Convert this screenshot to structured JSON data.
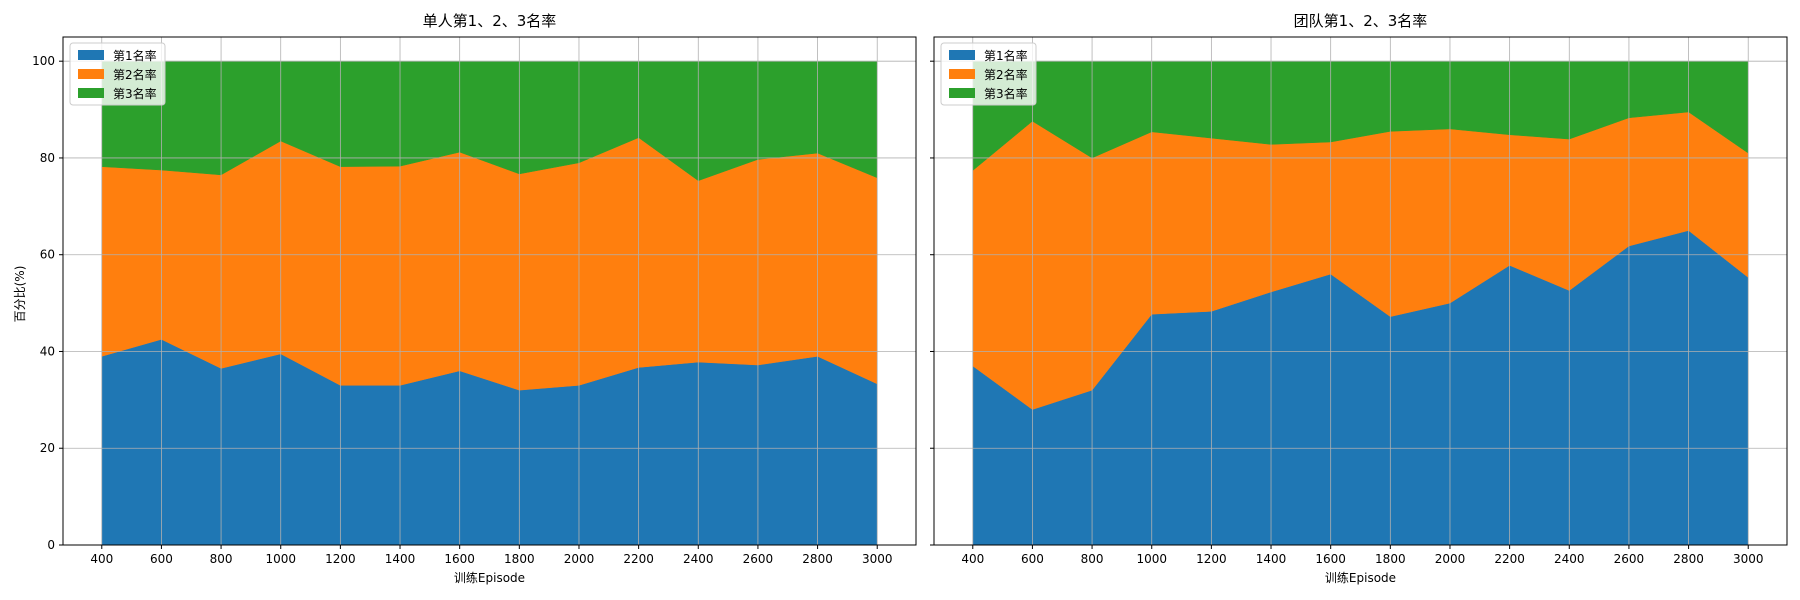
{
  "figure": {
    "ylabel_shared": "百分比(%)"
  },
  "chart_data": [
    {
      "type": "area",
      "stacked": true,
      "title": "单人第1、2、3名率",
      "xlabel": "训练Episode",
      "ylabel": "百分比(%)",
      "x": [
        400,
        600,
        800,
        1000,
        1200,
        1400,
        1600,
        1800,
        2000,
        2200,
        2400,
        2600,
        2800,
        3000
      ],
      "xticks": [
        "400",
        "600",
        "800",
        "1000",
        "1200",
        "1400",
        "1600",
        "1800",
        "2000",
        "2200",
        "2400",
        "2600",
        "2800",
        "3000"
      ],
      "ylim": [
        0,
        105
      ],
      "yticks": [
        "0",
        "20",
        "40",
        "60",
        "80",
        "100"
      ],
      "grid": true,
      "legend_position": "top-left",
      "series": [
        {
          "name": "第1名率",
          "color": "#1f77b4",
          "values": [
            39,
            42.5,
            36.5,
            39.5,
            33,
            33,
            36,
            32,
            33,
            36.7,
            37.8,
            37.2,
            39,
            33.3
          ]
        },
        {
          "name": "第2名率",
          "color": "#ff7f0e",
          "values": [
            39.2,
            35,
            40,
            44,
            45.2,
            45.3,
            45.2,
            44.7,
            46,
            47.5,
            37.5,
            42.5,
            42,
            42.6
          ]
        },
        {
          "name": "第3名率",
          "color": "#2ca02c",
          "values": [
            21.8,
            22.5,
            23.5,
            16.5,
            21.8,
            21.7,
            18.8,
            23.3,
            21,
            15.8,
            24.7,
            20.3,
            19,
            24.1
          ]
        }
      ]
    },
    {
      "type": "area",
      "stacked": true,
      "title": "团队第1、2、3名率",
      "xlabel": "训练Episode",
      "ylabel": "",
      "x": [
        400,
        600,
        800,
        1000,
        1200,
        1400,
        1600,
        1800,
        2000,
        2200,
        2400,
        2600,
        2800,
        3000
      ],
      "xticks": [
        "400",
        "600",
        "800",
        "1000",
        "1200",
        "1400",
        "1600",
        "1800",
        "2000",
        "2200",
        "2400",
        "2600",
        "2800",
        "3000"
      ],
      "ylim": [
        0,
        105
      ],
      "yticks": [
        "0",
        "20",
        "40",
        "60",
        "80",
        "100"
      ],
      "grid": true,
      "legend_position": "top-left",
      "series": [
        {
          "name": "第1名率",
          "color": "#1f77b4",
          "values": [
            37,
            28,
            32,
            47.7,
            48.3,
            52.3,
            56,
            47.2,
            50,
            57.8,
            52.6,
            61.8,
            65,
            55.3
          ]
        },
        {
          "name": "第2名率",
          "color": "#ff7f0e",
          "values": [
            40.4,
            59.6,
            48,
            37.7,
            35.8,
            30.5,
            27.3,
            38.3,
            36,
            27,
            31.3,
            26.5,
            24.5,
            25.7
          ]
        },
        {
          "name": "第3名率",
          "color": "#2ca02c",
          "values": [
            22.6,
            12.4,
            20,
            14.6,
            15.9,
            17.2,
            16.7,
            14.5,
            14,
            15.2,
            16.1,
            11.7,
            10.5,
            19
          ]
        }
      ]
    }
  ]
}
